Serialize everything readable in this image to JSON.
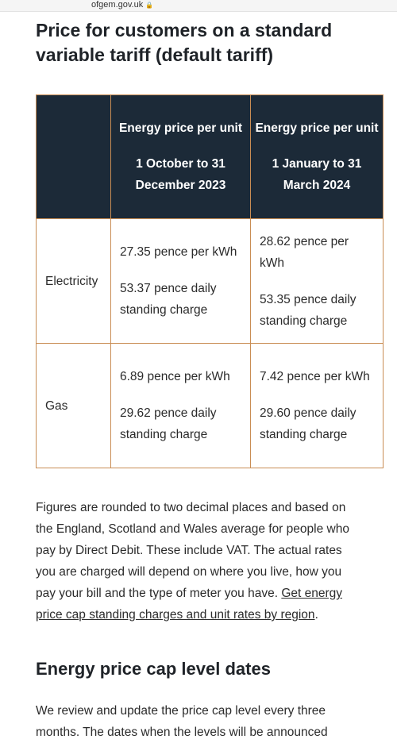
{
  "browser": {
    "url": "ofgem.gov.uk",
    "lock_icon": "lock-icon"
  },
  "page": {
    "title": "Price for customers on a standard variable tariff (default tariff)",
    "table": {
      "headers": [
        {
          "line1": "Energy price per unit",
          "line2": "1 October to 31 December 2023"
        },
        {
          "line1": "Energy price per unit",
          "line2": "1 January to 31 March 2024"
        }
      ],
      "rows": [
        {
          "label": "Electricity",
          "cells": [
            {
              "unit": "27.35 pence per kWh",
              "standing": "53.37 pence daily standing charge"
            },
            {
              "unit": "28.62 pence per kWh",
              "standing": "53.35 pence daily standing charge"
            }
          ]
        },
        {
          "label": "Gas",
          "cells": [
            {
              "unit": "6.89 pence per kWh",
              "standing": "29.62 pence daily standing charge"
            },
            {
              "unit": "7.42 pence per kWh",
              "standing": "29.60 pence daily standing charge"
            }
          ]
        }
      ]
    },
    "note_text": "Figures are rounded to two decimal places and based on the England, Scotland and Wales average for people who pay by Direct Debit. These include VAT. The actual rates you are charged will depend on where you live, how you pay your bill and the type of meter you have. ",
    "note_link": "Get energy price cap standing charges and unit rates by region",
    "note_end": ".",
    "section_heading": "Energy price cap level dates",
    "review_text": "We review and update the price cap level every three months. The dates when the levels will be announced"
  },
  "colors": {
    "header_bg": "#1c2a38",
    "border": "#c98d54"
  }
}
